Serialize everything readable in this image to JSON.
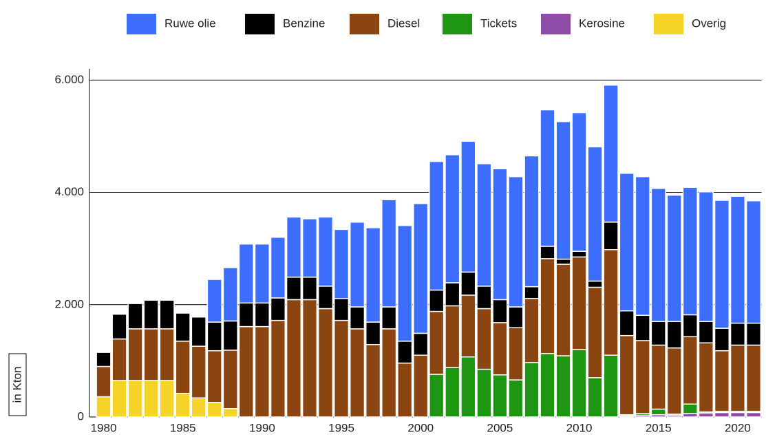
{
  "chart_data": {
    "type": "stacked_bar",
    "ylabel": "in Kton",
    "x": [
      1980,
      1981,
      1982,
      1983,
      1984,
      1985,
      1986,
      1987,
      1988,
      1989,
      1990,
      1991,
      1992,
      1993,
      1994,
      1995,
      1996,
      1997,
      1998,
      1999,
      2000,
      2001,
      2002,
      2003,
      2004,
      2005,
      2006,
      2007,
      2008,
      2009,
      2010,
      2011,
      2012,
      2013,
      2014,
      2015,
      2016,
      2017,
      2018,
      2019,
      2020,
      2021
    ],
    "xlim": [
      1979.5,
      2021.5
    ],
    "xticks": [
      1980,
      1985,
      1990,
      1995,
      2000,
      2005,
      2010,
      2015,
      2020
    ],
    "ylim": [
      0,
      6200
    ],
    "yticks": [
      0,
      {
        "value": 2000,
        "label": "2.000"
      },
      {
        "value": 4000,
        "label": "4.000"
      },
      {
        "value": 6000,
        "label": "6.000"
      }
    ],
    "grid": true,
    "legend": "top",
    "series": [
      {
        "name": "Overig",
        "color": "#f5d327",
        "values": [
          360,
          650,
          650,
          650,
          650,
          420,
          340,
          260,
          150,
          0,
          0,
          0,
          0,
          0,
          0,
          0,
          0,
          0,
          0,
          0,
          0,
          0,
          0,
          0,
          0,
          0,
          0,
          0,
          0,
          0,
          0,
          0,
          0,
          0,
          0,
          0,
          0,
          0,
          0,
          0,
          0,
          0
        ]
      },
      {
        "name": "Kerosine",
        "color": "#8e4ca8",
        "values": [
          0,
          0,
          0,
          0,
          0,
          0,
          0,
          0,
          0,
          0,
          0,
          0,
          0,
          0,
          0,
          0,
          0,
          0,
          0,
          0,
          0,
          0,
          0,
          0,
          0,
          0,
          0,
          0,
          0,
          0,
          0,
          0,
          0,
          20,
          30,
          40,
          30,
          60,
          70,
          80,
          80,
          80
        ]
      },
      {
        "name": "Tickets",
        "color": "#1f9612",
        "values": [
          0,
          0,
          0,
          0,
          0,
          0,
          0,
          0,
          0,
          0,
          0,
          0,
          0,
          0,
          0,
          0,
          0,
          0,
          0,
          0,
          0,
          760,
          880,
          1070,
          850,
          750,
          660,
          970,
          1130,
          1090,
          1200,
          700,
          1100,
          20,
          30,
          100,
          20,
          170,
          20,
          20,
          20,
          20
        ]
      },
      {
        "name": "Diesel",
        "color": "#8b4510",
        "values": [
          540,
          740,
          920,
          920,
          920,
          930,
          920,
          920,
          1040,
          1610,
          1610,
          1720,
          2090,
          2090,
          1930,
          1720,
          1570,
          1290,
          1570,
          960,
          1100,
          1120,
          1100,
          1100,
          1080,
          930,
          930,
          1140,
          1690,
          1630,
          1650,
          1610,
          1880,
          1410,
          1300,
          1140,
          1180,
          1200,
          1230,
          1080,
          1180,
          1180
        ]
      },
      {
        "name": "Benzine",
        "color": "#000000",
        "values": [
          250,
          440,
          450,
          510,
          510,
          500,
          520,
          510,
          520,
          420,
          420,
          400,
          400,
          400,
          400,
          390,
          390,
          400,
          390,
          390,
          390,
          380,
          410,
          410,
          400,
          410,
          370,
          210,
          220,
          90,
          100,
          110,
          490,
          440,
          450,
          420,
          470,
          390,
          380,
          400,
          390,
          390
        ]
      },
      {
        "name": "Ruwe olie",
        "color": "#3d6dfd",
        "values": [
          0,
          0,
          0,
          0,
          0,
          0,
          0,
          760,
          950,
          1050,
          1050,
          1080,
          1070,
          1040,
          1230,
          1230,
          1510,
          1680,
          1910,
          2060,
          2310,
          2290,
          2280,
          2330,
          2180,
          2330,
          2320,
          2330,
          2430,
          2450,
          2470,
          2390,
          2440,
          2450,
          2470,
          2370,
          2250,
          2270,
          2310,
          2280,
          2260,
          2180
        ]
      }
    ]
  }
}
